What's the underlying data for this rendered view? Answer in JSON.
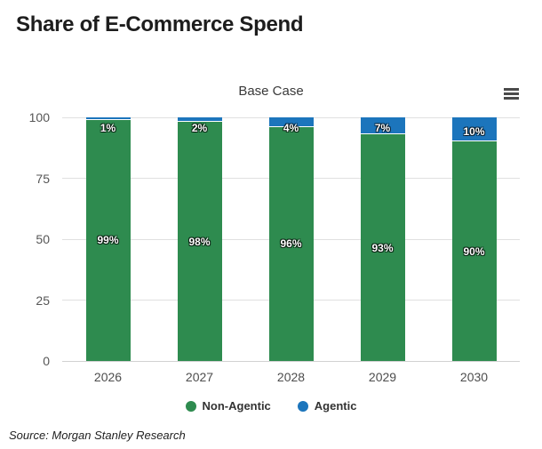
{
  "page": {
    "title": "Share of E-Commerce Spend"
  },
  "chart_data": {
    "type": "bar",
    "stacked": true,
    "title": "Base Case",
    "categories": [
      "2026",
      "2027",
      "2028",
      "2029",
      "2030"
    ],
    "series": [
      {
        "name": "Non-Agentic",
        "color": "#2e8b4f",
        "values": [
          99,
          98,
          96,
          93,
          90
        ]
      },
      {
        "name": "Agentic",
        "color": "#1c75bc",
        "values": [
          1,
          2,
          4,
          7,
          10
        ]
      }
    ],
    "data_labels": [
      [
        "99%",
        "98%",
        "96%",
        "93%",
        "90%"
      ],
      [
        "1%",
        "2%",
        "4%",
        "7%",
        "10%"
      ]
    ],
    "xlabel": "",
    "ylabel": "",
    "ylim": [
      0,
      100
    ],
    "yticks": [
      0,
      25,
      50,
      75,
      100
    ],
    "grid": true,
    "legend_position": "bottom"
  },
  "menu": {
    "icon": "hamburger-icon"
  },
  "source": {
    "text": "Source: Morgan Stanley Research"
  }
}
